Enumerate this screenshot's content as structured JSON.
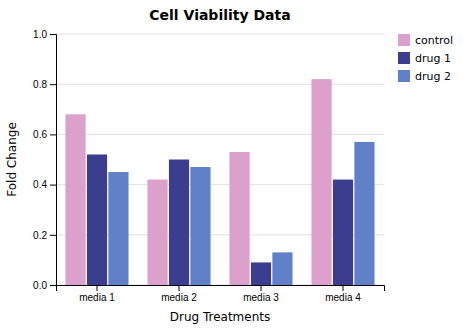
{
  "chart_data": {
    "type": "bar",
    "title": "Cell Viability Data",
    "xlabel": "Drug Treatments",
    "ylabel": "Fold Change",
    "categories": [
      "media 1",
      "media 2",
      "media 3",
      "media 4"
    ],
    "series": [
      {
        "name": "control",
        "color": "#dba0cc",
        "values": [
          0.68,
          0.42,
          0.53,
          0.82
        ]
      },
      {
        "name": "drug 1",
        "color": "#3b3d8f",
        "values": [
          0.52,
          0.5,
          0.09,
          0.42
        ]
      },
      {
        "name": "drug 2",
        "color": "#6080c8",
        "values": [
          0.45,
          0.47,
          0.13,
          0.57
        ]
      }
    ],
    "ylim": [
      0,
      1.0
    ],
    "yticks": [
      {
        "value": 0.0,
        "label": "0.0"
      },
      0.2,
      0.4,
      0.6,
      0.8,
      {
        "value": 1.0,
        "label": "1.0"
      }
    ],
    "grid": true,
    "legend": "upper right"
  }
}
